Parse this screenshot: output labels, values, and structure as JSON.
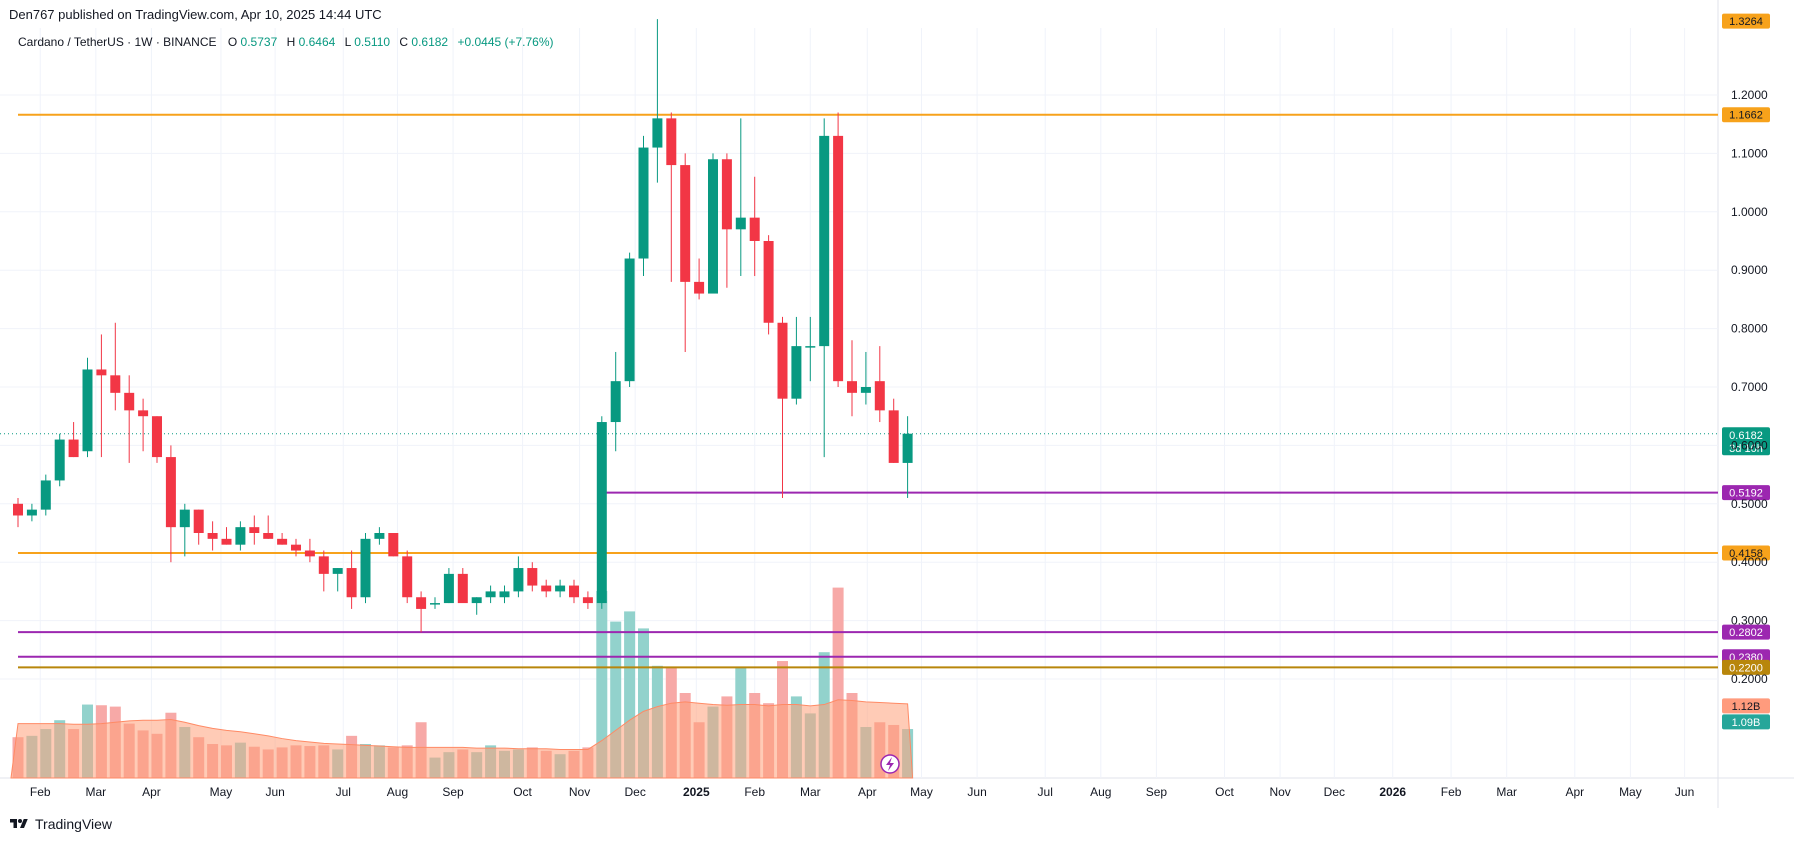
{
  "header": {
    "published": "Den767 published on TradingView.com, Apr 10, 2025 14:44 UTC"
  },
  "legend": {
    "symbol": "Cardano / TetherUS · 1W · BINANCE",
    "o_label": "O",
    "o_value": "0.5737",
    "h_label": "H",
    "h_value": "0.6464",
    "l_label": "L",
    "l_value": "0.5110",
    "c_label": "C",
    "c_value": "0.6182",
    "change": "+0.0445 (+7.76%)"
  },
  "footer": {
    "brand": "TradingView"
  },
  "colors": {
    "up": "#089981",
    "down": "#f23645",
    "up_volume": "#92d2cc",
    "down_volume": "#f7a9a7",
    "orange_line": "#f7a21b",
    "purple_line": "#9c27b0",
    "olive_line": "#b8860b",
    "volume_ma": "#ffa07a"
  },
  "chart_data": {
    "type": "candlestick",
    "title": "",
    "interval": "1W",
    "exchange": "BINANCE",
    "price_axis": {
      "ticks": [
        {
          "value": 0.2,
          "label": "0.2000"
        },
        {
          "value": 0.3,
          "label": "0.3000"
        },
        {
          "value": 0.4,
          "label": "0.4000"
        },
        {
          "value": 0.5,
          "label": "0.5000"
        },
        {
          "value": 0.6,
          "label": "0.6000"
        },
        {
          "value": 0.7,
          "label": "0.7000"
        },
        {
          "value": 0.8,
          "label": "0.8000"
        },
        {
          "value": 0.9,
          "label": "0.9000"
        },
        {
          "value": 1.0,
          "label": "1.0000"
        },
        {
          "value": 1.1,
          "label": "1.1000"
        },
        {
          "value": 1.2,
          "label": "1.2000"
        }
      ]
    },
    "time_axis": {
      "labels": [
        {
          "week": 1.6,
          "label": "Feb",
          "bold": false
        },
        {
          "week": 5.6,
          "label": "Mar",
          "bold": false
        },
        {
          "week": 9.6,
          "label": "Apr",
          "bold": false
        },
        {
          "week": 14.6,
          "label": "May",
          "bold": false
        },
        {
          "week": 18.5,
          "label": "Jun",
          "bold": false
        },
        {
          "week": 23.4,
          "label": "Jul",
          "bold": false
        },
        {
          "week": 27.3,
          "label": "Aug",
          "bold": false
        },
        {
          "week": 31.3,
          "label": "Sep",
          "bold": false
        },
        {
          "week": 36.3,
          "label": "Oct",
          "bold": false
        },
        {
          "week": 40.4,
          "label": "Nov",
          "bold": false
        },
        {
          "week": 44.4,
          "label": "Dec",
          "bold": false
        },
        {
          "week": 48.8,
          "label": "2025",
          "bold": true
        },
        {
          "week": 53.0,
          "label": "Feb",
          "bold": false
        },
        {
          "week": 57.0,
          "label": "Mar",
          "bold": false
        },
        {
          "week": 61.1,
          "label": "Apr",
          "bold": false
        },
        {
          "week": 65.0,
          "label": "May",
          "bold": false
        },
        {
          "week": 69.0,
          "label": "Jun",
          "bold": false
        },
        {
          "week": 73.9,
          "label": "Jul",
          "bold": false
        },
        {
          "week": 77.9,
          "label": "Aug",
          "bold": false
        },
        {
          "week": 81.9,
          "label": "Sep",
          "bold": false
        },
        {
          "week": 86.8,
          "label": "Oct",
          "bold": false
        },
        {
          "week": 90.8,
          "label": "Nov",
          "bold": false
        },
        {
          "week": 94.7,
          "label": "Dec",
          "bold": false
        },
        {
          "week": 98.9,
          "label": "2026",
          "bold": true
        },
        {
          "week": 103.1,
          "label": "Feb",
          "bold": false
        },
        {
          "week": 107.1,
          "label": "Mar",
          "bold": false
        },
        {
          "week": 112.0,
          "label": "Apr",
          "bold": false
        },
        {
          "week": 116.0,
          "label": "May",
          "bold": false
        },
        {
          "week": 119.9,
          "label": "Jun",
          "bold": false
        }
      ]
    },
    "candles": [
      {
        "o": 0.5,
        "h": 0.51,
        "l": 0.46,
        "c": 0.48,
        "v": 0.6
      },
      {
        "o": 0.48,
        "h": 0.5,
        "l": 0.47,
        "c": 0.49,
        "v": 0.62
      },
      {
        "o": 0.49,
        "h": 0.55,
        "l": 0.48,
        "c": 0.54,
        "v": 0.72
      },
      {
        "o": 0.54,
        "h": 0.62,
        "l": 0.53,
        "c": 0.61,
        "v": 0.85
      },
      {
        "o": 0.61,
        "h": 0.64,
        "l": 0.58,
        "c": 0.58,
        "v": 0.72
      },
      {
        "o": 0.59,
        "h": 0.75,
        "l": 0.58,
        "c": 0.73,
        "v": 1.08
      },
      {
        "o": 0.73,
        "h": 0.79,
        "l": 0.58,
        "c": 0.72,
        "v": 1.07
      },
      {
        "o": 0.72,
        "h": 0.81,
        "l": 0.66,
        "c": 0.69,
        "v": 1.05
      },
      {
        "o": 0.69,
        "h": 0.72,
        "l": 0.57,
        "c": 0.66,
        "v": 0.8
      },
      {
        "o": 0.66,
        "h": 0.68,
        "l": 0.59,
        "c": 0.65,
        "v": 0.7
      },
      {
        "o": 0.65,
        "h": 0.65,
        "l": 0.57,
        "c": 0.58,
        "v": 0.65
      },
      {
        "o": 0.58,
        "h": 0.6,
        "l": 0.4,
        "c": 0.46,
        "v": 0.96
      },
      {
        "o": 0.46,
        "h": 0.5,
        "l": 0.41,
        "c": 0.49,
        "v": 0.75
      },
      {
        "o": 0.49,
        "h": 0.49,
        "l": 0.43,
        "c": 0.45,
        "v": 0.6
      },
      {
        "o": 0.45,
        "h": 0.47,
        "l": 0.42,
        "c": 0.44,
        "v": 0.5
      },
      {
        "o": 0.44,
        "h": 0.46,
        "l": 0.43,
        "c": 0.43,
        "v": 0.48
      },
      {
        "o": 0.43,
        "h": 0.47,
        "l": 0.42,
        "c": 0.46,
        "v": 0.52
      },
      {
        "o": 0.46,
        "h": 0.48,
        "l": 0.43,
        "c": 0.45,
        "v": 0.46
      },
      {
        "o": 0.45,
        "h": 0.48,
        "l": 0.44,
        "c": 0.44,
        "v": 0.42
      },
      {
        "o": 0.44,
        "h": 0.45,
        "l": 0.43,
        "c": 0.43,
        "v": 0.45
      },
      {
        "o": 0.43,
        "h": 0.44,
        "l": 0.41,
        "c": 0.42,
        "v": 0.48
      },
      {
        "o": 0.42,
        "h": 0.44,
        "l": 0.4,
        "c": 0.41,
        "v": 0.47
      },
      {
        "o": 0.41,
        "h": 0.42,
        "l": 0.35,
        "c": 0.38,
        "v": 0.48
      },
      {
        "o": 0.38,
        "h": 0.39,
        "l": 0.35,
        "c": 0.39,
        "v": 0.42
      },
      {
        "o": 0.39,
        "h": 0.42,
        "l": 0.32,
        "c": 0.34,
        "v": 0.62
      },
      {
        "o": 0.34,
        "h": 0.45,
        "l": 0.33,
        "c": 0.44,
        "v": 0.5
      },
      {
        "o": 0.44,
        "h": 0.46,
        "l": 0.43,
        "c": 0.45,
        "v": 0.48
      },
      {
        "o": 0.45,
        "h": 0.45,
        "l": 0.41,
        "c": 0.41,
        "v": 0.45
      },
      {
        "o": 0.41,
        "h": 0.42,
        "l": 0.33,
        "c": 0.34,
        "v": 0.48
      },
      {
        "o": 0.34,
        "h": 0.35,
        "l": 0.28,
        "c": 0.32,
        "v": 0.82
      },
      {
        "o": 0.33,
        "h": 0.34,
        "l": 0.32,
        "c": 0.33,
        "v": 0.3
      },
      {
        "o": 0.33,
        "h": 0.39,
        "l": 0.33,
        "c": 0.38,
        "v": 0.38
      },
      {
        "o": 0.38,
        "h": 0.39,
        "l": 0.34,
        "c": 0.33,
        "v": 0.42
      },
      {
        "o": 0.33,
        "h": 0.34,
        "l": 0.31,
        "c": 0.34,
        "v": 0.38
      },
      {
        "o": 0.34,
        "h": 0.36,
        "l": 0.33,
        "c": 0.35,
        "v": 0.48
      },
      {
        "o": 0.34,
        "h": 0.36,
        "l": 0.33,
        "c": 0.35,
        "v": 0.4
      },
      {
        "o": 0.35,
        "h": 0.41,
        "l": 0.34,
        "c": 0.39,
        "v": 0.42
      },
      {
        "o": 0.39,
        "h": 0.4,
        "l": 0.35,
        "c": 0.36,
        "v": 0.45
      },
      {
        "o": 0.36,
        "h": 0.37,
        "l": 0.34,
        "c": 0.35,
        "v": 0.4
      },
      {
        "o": 0.35,
        "h": 0.37,
        "l": 0.34,
        "c": 0.36,
        "v": 0.35
      },
      {
        "o": 0.36,
        "h": 0.37,
        "l": 0.33,
        "c": 0.34,
        "v": 0.4
      },
      {
        "o": 0.34,
        "h": 0.35,
        "l": 0.32,
        "c": 0.33,
        "v": 0.45
      },
      {
        "o": 0.33,
        "h": 0.65,
        "l": 0.32,
        "c": 0.64,
        "v": 2.75
      },
      {
        "o": 0.64,
        "h": 0.76,
        "l": 0.59,
        "c": 0.71,
        "v": 2.3
      },
      {
        "o": 0.71,
        "h": 0.93,
        "l": 0.7,
        "c": 0.92,
        "v": 2.45
      },
      {
        "o": 0.92,
        "h": 1.13,
        "l": 0.89,
        "c": 1.11,
        "v": 2.2
      },
      {
        "o": 1.11,
        "h": 1.33,
        "l": 1.05,
        "c": 1.16,
        "v": 1.65
      },
      {
        "o": 1.16,
        "h": 1.17,
        "l": 0.88,
        "c": 1.08,
        "v": 1.62
      },
      {
        "o": 1.08,
        "h": 1.1,
        "l": 0.76,
        "c": 0.88,
        "v": 1.25
      },
      {
        "o": 0.88,
        "h": 0.92,
        "l": 0.85,
        "c": 0.86,
        "v": 0.82
      },
      {
        "o": 0.86,
        "h": 1.1,
        "l": 0.86,
        "c": 1.09,
        "v": 1.05
      },
      {
        "o": 1.09,
        "h": 1.1,
        "l": 0.87,
        "c": 0.97,
        "v": 1.2
      },
      {
        "o": 0.97,
        "h": 1.16,
        "l": 0.89,
        "c": 0.99,
        "v": 1.62
      },
      {
        "o": 0.99,
        "h": 1.06,
        "l": 0.89,
        "c": 0.95,
        "v": 1.25
      },
      {
        "o": 0.95,
        "h": 0.96,
        "l": 0.79,
        "c": 0.81,
        "v": 1.1
      },
      {
        "o": 0.81,
        "h": 0.82,
        "l": 0.51,
        "c": 0.68,
        "v": 1.72
      },
      {
        "o": 0.68,
        "h": 0.82,
        "l": 0.67,
        "c": 0.77,
        "v": 1.2
      },
      {
        "o": 0.77,
        "h": 0.82,
        "l": 0.71,
        "c": 0.77,
        "v": 0.95
      },
      {
        "o": 0.77,
        "h": 1.16,
        "l": 0.58,
        "c": 1.13,
        "v": 1.85
      },
      {
        "o": 1.13,
        "h": 1.17,
        "l": 0.7,
        "c": 0.71,
        "v": 2.8
      },
      {
        "o": 0.71,
        "h": 0.78,
        "l": 0.65,
        "c": 0.69,
        "v": 1.25
      },
      {
        "o": 0.69,
        "h": 0.76,
        "l": 0.67,
        "c": 0.7,
        "v": 0.75
      },
      {
        "o": 0.71,
        "h": 0.77,
        "l": 0.64,
        "c": 0.66,
        "v": 0.82
      },
      {
        "o": 0.66,
        "h": 0.68,
        "l": 0.57,
        "c": 0.57,
        "v": 0.78
      },
      {
        "o": 0.57,
        "h": 0.65,
        "l": 0.51,
        "c": 0.62,
        "v": 0.72
      }
    ],
    "volume_ma": [
      0.8,
      0.8,
      0.8,
      0.8,
      0.79,
      0.79,
      0.8,
      0.82,
      0.84,
      0.85,
      0.85,
      0.86,
      0.82,
      0.77,
      0.73,
      0.7,
      0.68,
      0.65,
      0.62,
      0.58,
      0.55,
      0.53,
      0.51,
      0.5,
      0.49,
      0.48,
      0.47,
      0.46,
      0.45,
      0.45,
      0.45,
      0.45,
      0.45,
      0.44,
      0.44,
      0.44,
      0.43,
      0.43,
      0.43,
      0.42,
      0.42,
      0.42,
      0.55,
      0.7,
      0.85,
      0.98,
      1.05,
      1.1,
      1.12,
      1.1,
      1.08,
      1.07,
      1.08,
      1.08,
      1.06,
      1.08,
      1.08,
      1.06,
      1.08,
      1.15,
      1.14,
      1.12,
      1.11,
      1.1,
      1.09
    ],
    "horizontal_levels": [
      {
        "value": 1.1662,
        "label": "1.1662",
        "color": "#f7a21b",
        "from_week": 0
      },
      {
        "value": 0.5192,
        "label": "0.5192",
        "color": "#9c27b0",
        "from_week": 42
      },
      {
        "value": 0.4158,
        "label": "0.4158",
        "color": "#f7a21b",
        "from_week": 0
      },
      {
        "value": 0.2802,
        "label": "0.2802",
        "color": "#9c27b0",
        "from_week": 0
      },
      {
        "value": 0.238,
        "label": "0.2380",
        "color": "#9c27b0",
        "from_week": 0
      },
      {
        "value": 0.22,
        "label": "0.2200",
        "color": "#b8860b",
        "from_week": 0
      }
    ],
    "axis_badges": [
      {
        "value": 1.3264,
        "label": "1.3264",
        "color": "#f7a21b",
        "text_color": "#131722"
      },
      {
        "value": 0.6182,
        "label": "0.6182",
        "sub": "3d 10h",
        "color": "#089981",
        "text_color": "#ffffff"
      }
    ],
    "volume_badges": [
      {
        "value": 1.12,
        "label": "1.12B",
        "color": "#ff9b7d",
        "text_color": "#131722"
      },
      {
        "value": 1.09,
        "label": "1.09B",
        "color": "#26a69a",
        "text_color": "#ffffff"
      }
    ]
  }
}
